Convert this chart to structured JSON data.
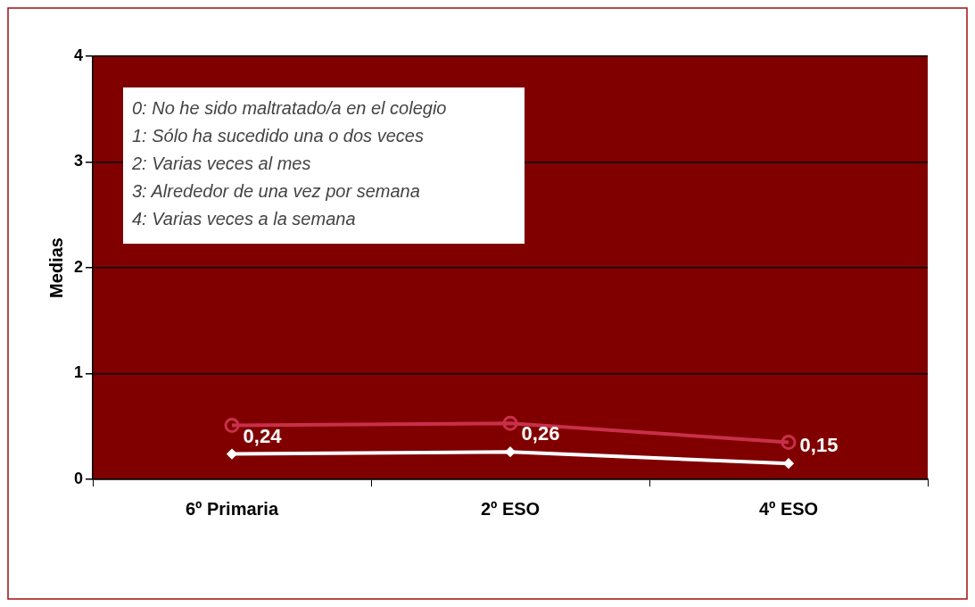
{
  "chart_data": {
    "type": "line",
    "ylabel": "Medias",
    "categories": [
      "6º Primaria",
      "2º ESO",
      "4º ESO"
    ],
    "series": [
      {
        "color": "#ffffff",
        "values": [
          0.24,
          0.26,
          0.15
        ],
        "marker": "diamond",
        "value_labels": [
          "0,24",
          "0,26",
          "0,15"
        ]
      },
      {
        "color": "#c8304a",
        "values": [
          0.51,
          0.53,
          0.35
        ],
        "marker": "circle"
      }
    ],
    "ylim": [
      0,
      4
    ],
    "yticks": [
      0,
      1,
      2,
      3,
      4
    ],
    "grid": "y",
    "legend": false,
    "annotations": [
      "0: No he sido maltratado/a en el colegio",
      "1: Sólo ha sucedido una o dos veces",
      "2: Varias veces al mes",
      "3: Alrededor de una vez por semana",
      "4: Varias veces a la semana"
    ]
  }
}
